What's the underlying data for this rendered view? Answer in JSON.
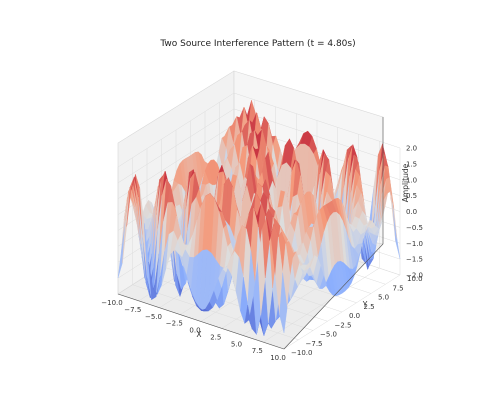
{
  "chart_data": {
    "type": "surface",
    "title": "Two Source Interference Pattern (t = 4.80s)",
    "xlabel": "X",
    "ylabel": "Y",
    "zlabel": "Amplitude",
    "xlim": [
      -10,
      10
    ],
    "ylim": [
      -10,
      10
    ],
    "zlim": [
      -2,
      2
    ],
    "x_ticks": [
      "−10.0",
      "−7.5",
      "−5.0",
      "−2.5",
      "0.0",
      "2.5",
      "5.0",
      "7.5",
      "10.0"
    ],
    "y_ticks": [
      "−10.0",
      "−7.5",
      "−5.0",
      "−2.5",
      "0.0",
      "2.5",
      "5.0",
      "7.5",
      "10.0"
    ],
    "z_ticks": [
      "−2.0",
      "−1.5",
      "−1.0",
      "−0.5",
      "0.0",
      "0.5",
      "1.0",
      "1.5",
      "2.0"
    ],
    "colormap": "coolwarm",
    "grid": true
  }
}
